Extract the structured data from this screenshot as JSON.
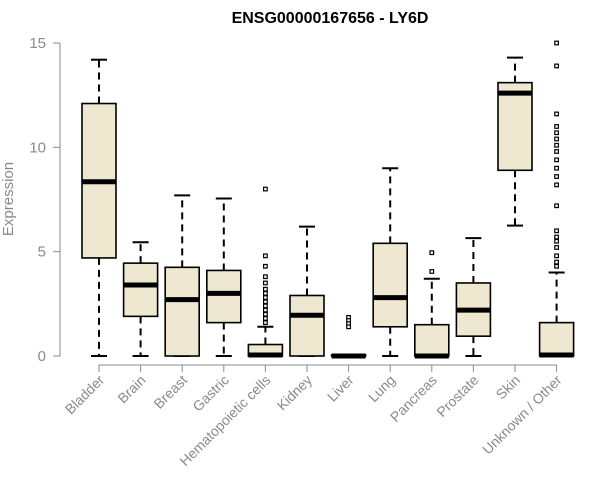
{
  "chart_data": {
    "type": "boxplot",
    "title": "ENSG00000167656 - LY6D",
    "ylabel": "Expression",
    "xlabel": "",
    "ylim": [
      0,
      15
    ],
    "yticks": [
      0,
      5,
      10,
      15
    ],
    "grid": false,
    "box_fill": "#efe8d0",
    "box_stroke": "#000000",
    "axis_color": "#8a8a8a",
    "categories": [
      "Bladder",
      "Brain",
      "Breast",
      "Gastric",
      "Hematopoietic cells",
      "Kidney",
      "Liver",
      "Lung",
      "Pancreas",
      "Prostate",
      "Skin",
      "Unknown / Other"
    ],
    "boxes": [
      {
        "whisker_low": 0.0,
        "q1": 4.7,
        "median": 8.35,
        "q3": 12.1,
        "whisker_high": 14.2,
        "outliers": []
      },
      {
        "whisker_low": 0.0,
        "q1": 1.9,
        "median": 3.4,
        "q3": 4.45,
        "whisker_high": 5.45,
        "outliers": []
      },
      {
        "whisker_low": 0.0,
        "q1": 0.0,
        "median": 2.7,
        "q3": 4.25,
        "whisker_high": 7.7,
        "outliers": []
      },
      {
        "whisker_low": 0.0,
        "q1": 1.6,
        "median": 3.0,
        "q3": 4.1,
        "whisker_high": 7.55,
        "outliers": []
      },
      {
        "whisker_low": 0.0,
        "q1": 0.0,
        "median": 0.05,
        "q3": 0.55,
        "whisker_high": 1.4,
        "outliers": [
          8.0,
          4.8,
          4.3,
          3.8,
          3.5,
          3.2,
          3.0,
          2.8,
          2.6,
          2.4,
          2.2,
          2.0,
          1.8,
          1.6
        ]
      },
      {
        "whisker_low": 0.0,
        "q1": 0.0,
        "median": 1.95,
        "q3": 2.9,
        "whisker_high": 6.2,
        "outliers": []
      },
      {
        "whisker_low": 0.0,
        "q1": 0.0,
        "median": 0.0,
        "q3": 0.05,
        "whisker_high": 0.05,
        "outliers": [
          1.85,
          1.7,
          1.55,
          1.4
        ]
      },
      {
        "whisker_low": 0.0,
        "q1": 1.4,
        "median": 2.8,
        "q3": 5.4,
        "whisker_high": 9.0,
        "outliers": []
      },
      {
        "whisker_low": 0.0,
        "q1": 0.0,
        "median": 0.0,
        "q3": 1.5,
        "whisker_high": 3.7,
        "outliers": [
          4.95,
          4.05
        ]
      },
      {
        "whisker_low": 0.0,
        "q1": 0.95,
        "median": 2.2,
        "q3": 3.5,
        "whisker_high": 5.65,
        "outliers": []
      },
      {
        "whisker_low": 6.25,
        "q1": 8.9,
        "median": 12.6,
        "q3": 13.1,
        "whisker_high": 14.3,
        "outliers": []
      },
      {
        "whisker_low": 0.0,
        "q1": 0.0,
        "median": 0.05,
        "q3": 1.6,
        "whisker_high": 4.0,
        "outliers": [
          15.0,
          13.9,
          11.6,
          11.0,
          10.7,
          10.4,
          10.1,
          9.8,
          9.4,
          9.0,
          8.6,
          8.2,
          7.2,
          6.0,
          5.7,
          5.5,
          5.2,
          4.8,
          4.5,
          4.3
        ]
      }
    ]
  }
}
